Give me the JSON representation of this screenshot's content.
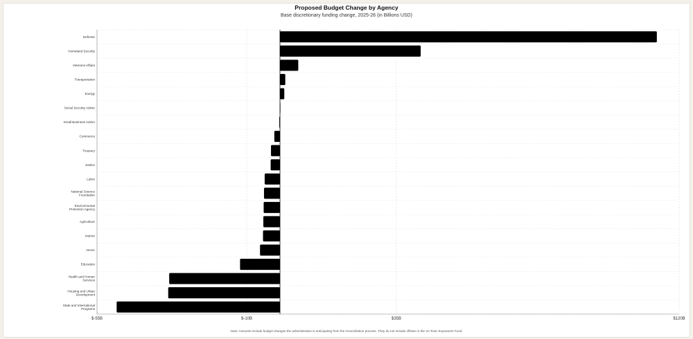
{
  "chart_data": {
    "type": "bar",
    "orientation": "horizontal",
    "title": "Proposed Budget Change by Agency",
    "subtitle": "Base discretionary funding change, 2025-26 (in Billions USD)",
    "note": "Note: Amounts include budget changes the administration is anticipating from the reconciliation process. They do not include offsets or the VA Toxic Exposures Fund.",
    "categories": [
      [
        "Defense"
      ],
      [
        "Homeland Security"
      ],
      [
        "Veterans Affairs"
      ],
      [
        "Transportation"
      ],
      [
        "Energy"
      ],
      [
        "Social Security Admin"
      ],
      [
        "Small Business Admin"
      ],
      [
        "Commerce"
      ],
      [
        "Treasury"
      ],
      [
        "Justice"
      ],
      [
        "Labor"
      ],
      [
        "National Science",
        "Foundation"
      ],
      [
        "Environmental",
        "Protection Agency"
      ],
      [
        "Agriculture"
      ],
      [
        "Interior"
      ],
      [
        "NASA"
      ],
      [
        "Education"
      ],
      [
        "Health and Human",
        "Services"
      ],
      [
        "Housing and Urban",
        "Development"
      ],
      [
        "State and International",
        "Programs"
      ]
    ],
    "values": [
      113.3,
      42.3,
      5.5,
      1.6,
      1.3,
      0.1,
      -0.2,
      -1.7,
      -2.7,
      -2.8,
      -4.6,
      -4.8,
      -4.9,
      -5.0,
      -5.1,
      -6.0,
      -12.0,
      -33.3,
      -33.6,
      -49.1
    ],
    "xlim": [
      -55,
      120
    ],
    "xticks": [
      -55,
      -10,
      35,
      120
    ],
    "xtick_labels": [
      "$-55B",
      "$-10B",
      "$35B",
      "$120B"
    ],
    "bar_color": "#000000",
    "grid": true
  }
}
